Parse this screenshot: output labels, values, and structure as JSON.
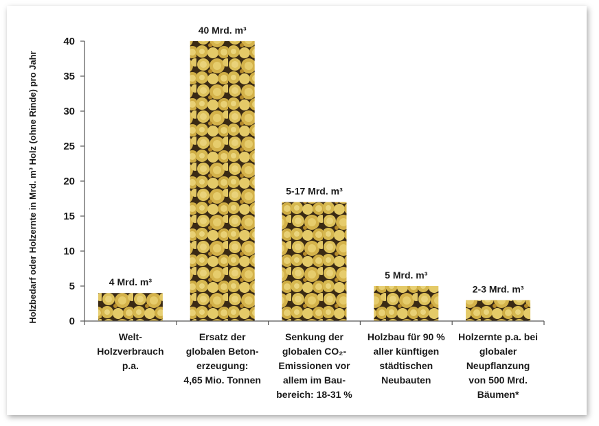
{
  "chart_data": {
    "type": "bar",
    "title": "",
    "xlabel": "",
    "ylabel": "Holzbedarf oder Holzernte in Mrd. m³ Holz (ohne Rinde) pro Jahr",
    "ylim": [
      0,
      40
    ],
    "yticks": [
      0,
      5,
      10,
      15,
      20,
      25,
      30,
      35,
      40
    ],
    "grid": false,
    "categories": [
      [
        "Welt-",
        "Holzverbrauch",
        "p.a."
      ],
      [
        "Ersatz der",
        "globalen Beton-",
        "erzeugung:",
        "4,65 Mio. Tonnen"
      ],
      [
        "Senkung der",
        "globalen CO₂-",
        "Emissionen vor",
        "allem im Bau-",
        "bereich: 18-31 %"
      ],
      [
        "Holzbau für 90 %",
        "aller künftigen",
        "städtischen",
        "Neubauten"
      ],
      [
        "Holzernte p.a. bei",
        "globaler",
        "Neupflanzung",
        "von 500 Mrd.",
        "Bäumen*"
      ]
    ],
    "values": [
      4,
      40,
      17,
      5,
      3
    ],
    "data_labels": [
      "4 Mrd. m³",
      "40 Mrd. m³",
      "5-17 Mrd. m³",
      "5 Mrd. m³",
      "2-3 Mrd. m³"
    ],
    "bar_fill": "log-stack texture",
    "colors": {
      "wood_light": "#e8cf6a",
      "wood_mid": "#d9b848",
      "wood_dark": "#b58a2a",
      "gap": "#3a2a14",
      "axis": "#555555"
    }
  }
}
